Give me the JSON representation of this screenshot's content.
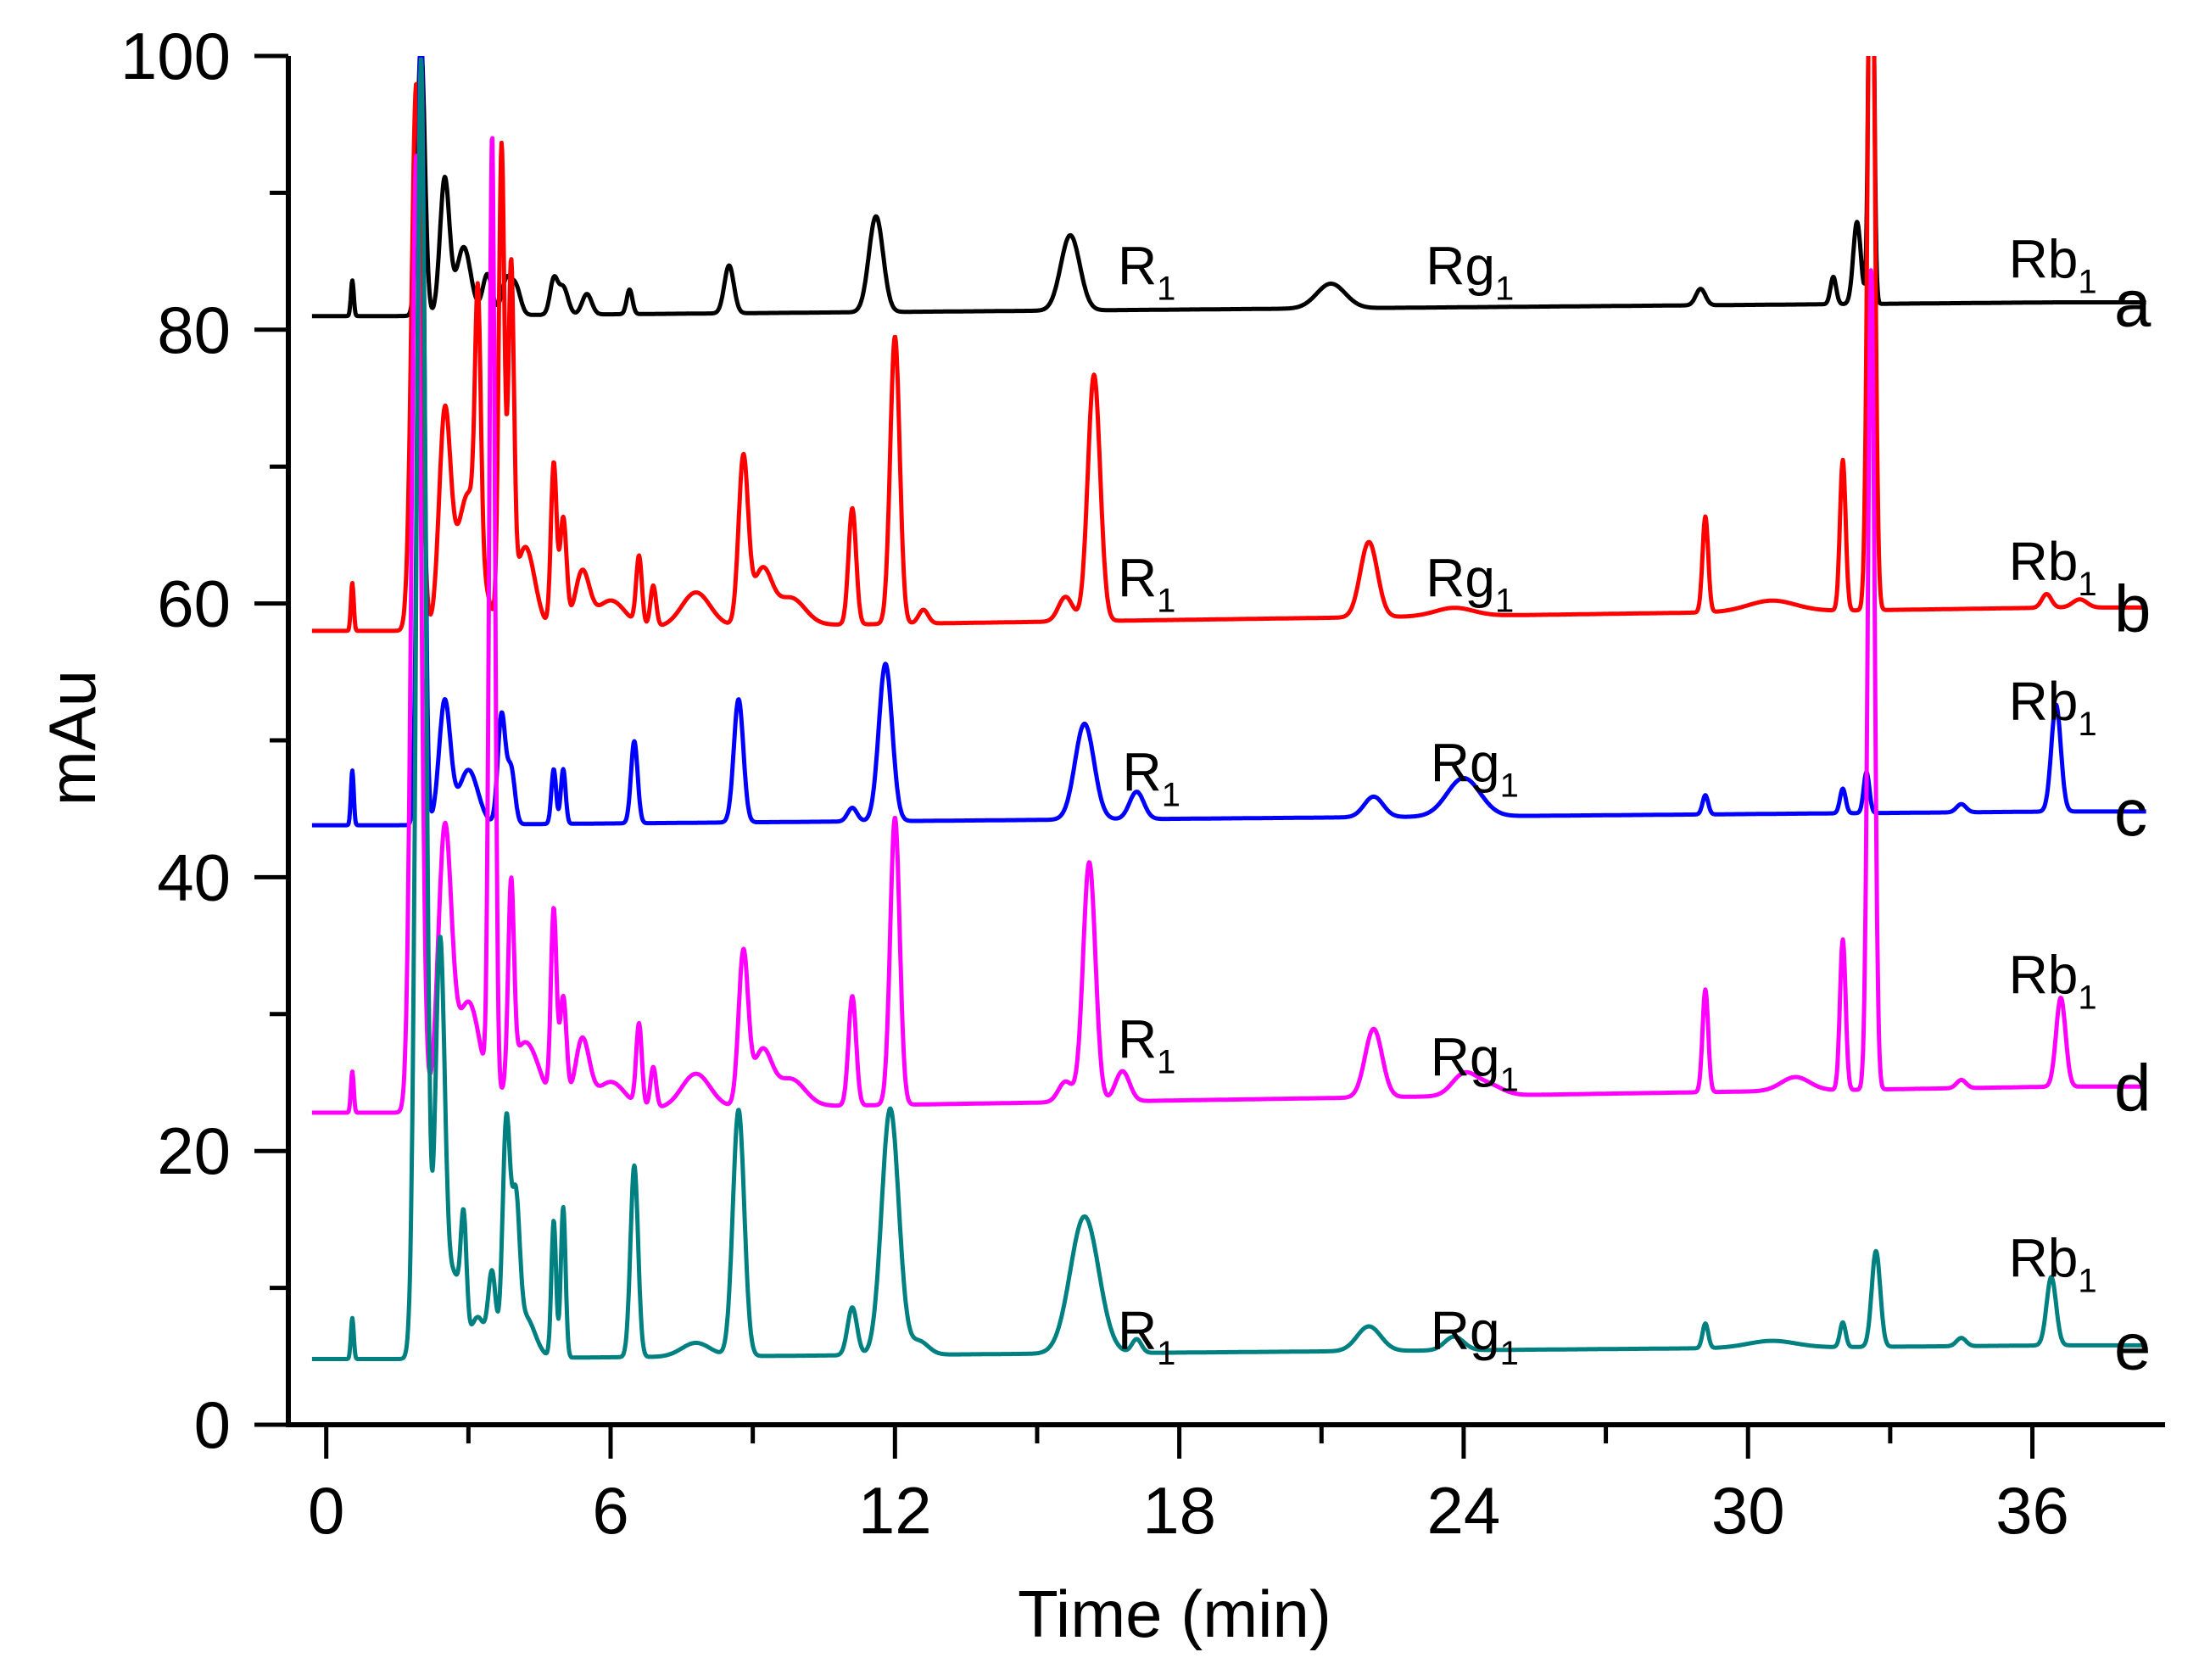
{
  "chart_data": {
    "type": "line",
    "title": "",
    "xlabel": "Time (min)",
    "ylabel": "mAu",
    "xlim": [
      -0.8,
      38.8
    ],
    "ylim": [
      0,
      100
    ],
    "x_ticks": [
      0,
      6,
      12,
      18,
      24,
      30,
      36
    ],
    "y_ticks": [
      0,
      20,
      40,
      60,
      80,
      100
    ],
    "grid": false,
    "legend": "right-side letters",
    "peak_names": [
      "R",
      "Rg",
      "Rb"
    ],
    "peak_subscript": "1",
    "series": [
      {
        "name": "a",
        "color": "#000000",
        "baseline": 81,
        "end_baseline": 82,
        "peaks": [
          [
            0.55,
            2.6,
            0.03
          ],
          [
            2.0,
            20,
            0.08
          ],
          [
            2.5,
            10,
            0.1
          ],
          [
            2.9,
            5,
            0.15
          ],
          [
            3.4,
            3,
            0.1
          ],
          [
            3.8,
            2.5,
            0.1
          ],
          [
            4.0,
            2.0,
            0.1
          ],
          [
            4.8,
            2.5,
            0.08
          ],
          [
            5.0,
            2.0,
            0.1
          ],
          [
            5.5,
            1.5,
            0.1
          ],
          [
            6.4,
            1.8,
            0.06
          ],
          [
            8.5,
            3.5,
            0.1
          ],
          [
            11.6,
            7.0,
            0.15
          ],
          [
            15.7,
            5.5,
            0.2
          ],
          [
            21.2,
            1.8,
            0.3
          ],
          [
            29.0,
            1.2,
            0.1
          ],
          [
            31.8,
            2.0,
            0.06
          ],
          [
            32.3,
            6.0,
            0.08
          ],
          [
            32.6,
            40,
            0.05
          ]
        ],
        "peak_labels": [
          {
            "name": "R",
            "x": 16.7,
            "y": 83.3
          },
          {
            "name": "Rg",
            "x": 23.2,
            "y": 83.3
          },
          {
            "name": "Rb",
            "x": 35.5,
            "y": 83.8
          }
        ]
      },
      {
        "name": "b",
        "color": "#ff0000",
        "baseline": 58,
        "end_baseline": 59.7,
        "peaks": [
          [
            0.55,
            3.5,
            0.03
          ],
          [
            1.9,
            40,
            0.1
          ],
          [
            2.5,
            15,
            0.12
          ],
          [
            3.0,
            10,
            0.25
          ],
          [
            3.2,
            18,
            0.06
          ],
          [
            3.7,
            35,
            0.06
          ],
          [
            3.9,
            25,
            0.06
          ],
          [
            4.2,
            6,
            0.2
          ],
          [
            4.8,
            12,
            0.06
          ],
          [
            5.0,
            8,
            0.07
          ],
          [
            5.4,
            4,
            0.15
          ],
          [
            6.0,
            2,
            0.3
          ],
          [
            6.6,
            5,
            0.06
          ],
          [
            6.9,
            3,
            0.06
          ],
          [
            7.8,
            2.5,
            0.3
          ],
          [
            8.8,
            12,
            0.1
          ],
          [
            9.2,
            4,
            0.2
          ],
          [
            9.8,
            2,
            0.3
          ],
          [
            11.1,
            8.5,
            0.08
          ],
          [
            12.0,
            21,
            0.1
          ],
          [
            12.6,
            1.0,
            0.1
          ],
          [
            15.6,
            1.8,
            0.15
          ],
          [
            16.2,
            18,
            0.13
          ],
          [
            22.0,
            5.5,
            0.18
          ],
          [
            23.8,
            0.6,
            0.4
          ],
          [
            29.1,
            7.0,
            0.06
          ],
          [
            30.5,
            0.8,
            0.5
          ],
          [
            32.0,
            11,
            0.06
          ],
          [
            32.6,
            60,
            0.07
          ],
          [
            36.3,
            1.0,
            0.1
          ],
          [
            37.0,
            0.6,
            0.15
          ]
        ],
        "peak_labels": [
          {
            "name": "R",
            "x": 16.7,
            "y": 60.5
          },
          {
            "name": "Rg",
            "x": 23.2,
            "y": 60.5
          },
          {
            "name": "Rb",
            "x": 35.5,
            "y": 61.7
          }
        ]
      },
      {
        "name": "c",
        "color": "#0000ff",
        "baseline": 43.8,
        "end_baseline": 44.8,
        "peaks": [
          [
            0.55,
            4.0,
            0.03
          ],
          [
            2.0,
            60,
            0.07
          ],
          [
            2.5,
            9,
            0.12
          ],
          [
            3.0,
            4,
            0.2
          ],
          [
            3.7,
            8,
            0.08
          ],
          [
            3.9,
            4,
            0.08
          ],
          [
            4.8,
            4,
            0.05
          ],
          [
            5.0,
            4,
            0.05
          ],
          [
            6.5,
            6,
            0.07
          ],
          [
            8.7,
            9,
            0.1
          ],
          [
            11.1,
            1,
            0.1
          ],
          [
            11.8,
            11.5,
            0.14
          ],
          [
            16.0,
            7,
            0.2
          ],
          [
            17.1,
            2,
            0.15
          ],
          [
            22.1,
            1.5,
            0.2
          ],
          [
            24.0,
            2.8,
            0.35
          ],
          [
            29.1,
            1.4,
            0.06
          ],
          [
            32.0,
            1.8,
            0.06
          ],
          [
            32.5,
            3.0,
            0.06
          ],
          [
            34.5,
            0.6,
            0.1
          ],
          [
            36.5,
            7.8,
            0.1
          ]
        ],
        "peak_labels": [
          {
            "name": "R",
            "x": 16.8,
            "y": 46.3
          },
          {
            "name": "Rg",
            "x": 23.3,
            "y": 47.0
          },
          {
            "name": "Rb",
            "x": 35.5,
            "y": 51.5
          }
        ]
      },
      {
        "name": "d",
        "color": "#ff00ff",
        "baseline": 22.8,
        "end_baseline": 24.7,
        "peaks": [
          [
            0.55,
            3.0,
            0.03
          ],
          [
            1.9,
            70,
            0.1
          ],
          [
            2.5,
            20,
            0.14
          ],
          [
            3.0,
            8,
            0.25
          ],
          [
            3.5,
            70,
            0.06
          ],
          [
            3.9,
            14,
            0.06
          ],
          [
            4.2,
            5,
            0.3
          ],
          [
            4.8,
            14,
            0.06
          ],
          [
            5.0,
            8,
            0.07
          ],
          [
            5.4,
            5,
            0.15
          ],
          [
            6.0,
            2,
            0.3
          ],
          [
            6.6,
            6,
            0.06
          ],
          [
            6.9,
            3,
            0.06
          ],
          [
            7.8,
            2.5,
            0.3
          ],
          [
            8.8,
            11,
            0.1
          ],
          [
            9.2,
            4,
            0.2
          ],
          [
            9.8,
            2,
            0.3
          ],
          [
            11.1,
            8,
            0.08
          ],
          [
            12.0,
            21,
            0.1
          ],
          [
            15.6,
            1.5,
            0.15
          ],
          [
            16.1,
            17.5,
            0.13
          ],
          [
            16.8,
            2.2,
            0.15
          ],
          [
            22.1,
            5,
            0.18
          ],
          [
            24.0,
            1.5,
            0.25
          ],
          [
            24.5,
            0.8,
            0.3
          ],
          [
            29.1,
            7.5,
            0.06
          ],
          [
            31.0,
            1.0,
            0.3
          ],
          [
            32.0,
            11,
            0.06
          ],
          [
            32.6,
            60,
            0.07
          ],
          [
            34.5,
            0.6,
            0.1
          ],
          [
            36.6,
            6.5,
            0.1
          ]
        ],
        "peak_labels": [
          {
            "name": "R",
            "x": 16.7,
            "y": 26.8
          },
          {
            "name": "Rg",
            "x": 23.3,
            "y": 25.5
          },
          {
            "name": "Rb",
            "x": 35.5,
            "y": 31.5
          }
        ]
      },
      {
        "name": "e",
        "color": "#008080",
        "baseline": 4.8,
        "end_baseline": 5.8,
        "peaks": [
          [
            0.55,
            3.0,
            0.03
          ],
          [
            2.0,
            95,
            0.1
          ],
          [
            2.4,
            30,
            0.1
          ],
          [
            2.7,
            6,
            0.15
          ],
          [
            2.9,
            8,
            0.06
          ],
          [
            3.2,
            3,
            0.15
          ],
          [
            3.5,
            6,
            0.08
          ],
          [
            3.8,
            17,
            0.08
          ],
          [
            4.0,
            10,
            0.08
          ],
          [
            4.2,
            3,
            0.2
          ],
          [
            4.8,
            10,
            0.05
          ],
          [
            5.0,
            11,
            0.05
          ],
          [
            6.5,
            14,
            0.08
          ],
          [
            7.8,
            1,
            0.3
          ],
          [
            8.7,
            18,
            0.12
          ],
          [
            11.1,
            3.5,
            0.1
          ],
          [
            11.9,
            18,
            0.18
          ],
          [
            12.5,
            1,
            0.2
          ],
          [
            16.0,
            10,
            0.3
          ],
          [
            17.1,
            1,
            0.1
          ],
          [
            22.0,
            1.8,
            0.25
          ],
          [
            23.8,
            1.0,
            0.2
          ],
          [
            29.1,
            1.8,
            0.06
          ],
          [
            30.5,
            0.5,
            0.5
          ],
          [
            32.0,
            1.8,
            0.06
          ],
          [
            32.7,
            7.0,
            0.09
          ],
          [
            34.5,
            0.6,
            0.1
          ],
          [
            36.4,
            5,
            0.1
          ]
        ],
        "peak_labels": [
          {
            "name": "R",
            "x": 16.7,
            "y": 5.5
          },
          {
            "name": "Rg",
            "x": 23.3,
            "y": 5.5
          },
          {
            "name": "Rb",
            "x": 35.5,
            "y": 10.8
          }
        ]
      }
    ]
  }
}
